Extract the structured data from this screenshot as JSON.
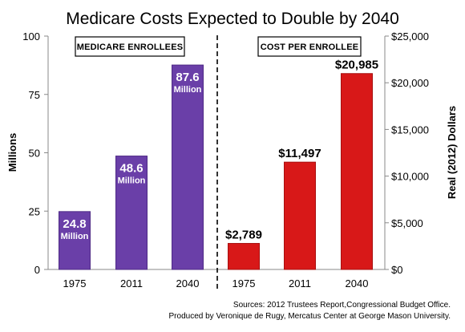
{
  "title": "Medicare Costs Expected to Double by 2040",
  "colors": {
    "enrollees_bar": "#6a3fa8",
    "enrollees_bar_edge": "#4e2a86",
    "cost_bar": "#d81818",
    "cost_bar_edge": "#a80f0f"
  },
  "chart_data": [
    {
      "type": "bar",
      "panel_label": "MEDICARE ENROLLEES",
      "categories": [
        "1975",
        "2011",
        "2040"
      ],
      "values": [
        24.8,
        48.6,
        87.6
      ],
      "data_labels": [
        "24.8",
        "48.6",
        "87.6"
      ],
      "data_label_unit": "Million",
      "ylabel": "Millions",
      "ylim": [
        0,
        100
      ],
      "yticks": [
        "0",
        "25",
        "50",
        "75",
        "100"
      ],
      "y_axis_side": "left"
    },
    {
      "type": "bar",
      "panel_label": "COST PER ENROLLEE",
      "categories": [
        "1975",
        "2011",
        "2040"
      ],
      "values": [
        2789,
        11497,
        20985
      ],
      "data_labels": [
        "$2,789",
        "$11,497",
        "$20,985"
      ],
      "ylabel": "Real (2012) Dollars",
      "ylim": [
        0,
        25000
      ],
      "yticks": [
        "$0",
        "$5,000",
        "$10,000",
        "$15,000",
        "$20,000",
        "$25,000"
      ],
      "y_axis_side": "right"
    }
  ],
  "sources": [
    "Sources: 2012 Trustees Report,Congressional Budget Office.",
    "Produced by Veronique de Rugy,  Mercatus Center at George Mason University."
  ]
}
